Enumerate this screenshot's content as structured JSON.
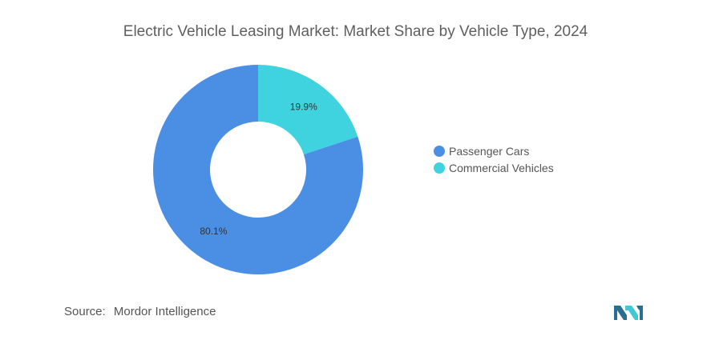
{
  "title": "Electric Vehicle Leasing Market: Market Share by Vehicle Type, 2024",
  "source": {
    "label": "Source:",
    "value": "Mordor Intelligence"
  },
  "chart_data": {
    "type": "pie",
    "variant": "donut",
    "title": "Electric Vehicle Leasing Market: Market Share by Vehicle Type, 2024",
    "legend_position": "right",
    "slices": [
      {
        "label": "Passenger Cars",
        "value": 80.1,
        "display": "80.1%",
        "color": "#4a8fe3"
      },
      {
        "label": "Commercial Vehicles",
        "value": 19.9,
        "display": "19.9%",
        "color": "#3fd3df"
      }
    ]
  }
}
